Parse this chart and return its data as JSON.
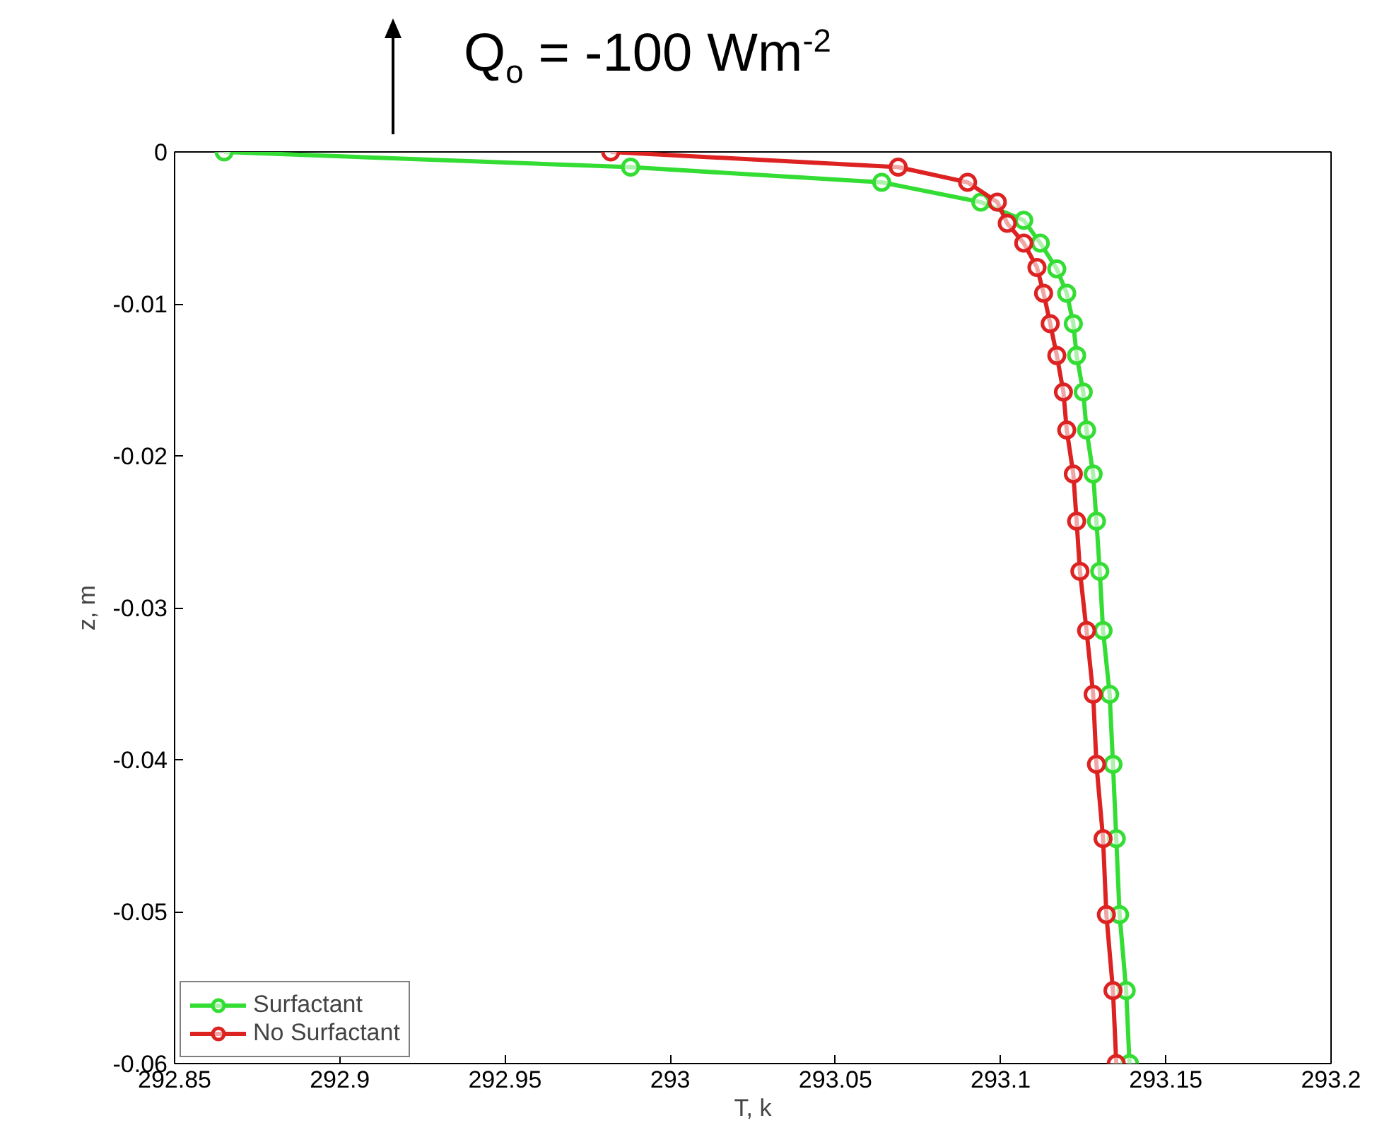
{
  "chart_data": {
    "type": "line",
    "title": "Q$_{o}$ = -100 Wm$^{-2}$",
    "xlabel": "T, k",
    "ylabel": "z, m",
    "xlim": [
      292.85,
      293.2
    ],
    "xticks": [
      292.85,
      292.9,
      292.95,
      293,
      293.05,
      293.1,
      293.15,
      293.2
    ],
    "ylim": [
      -0.06,
      0
    ],
    "yticks": [
      -0.06,
      -0.05,
      -0.04,
      -0.03,
      -0.02,
      -0.01,
      0
    ],
    "marker": "circle",
    "line_style": "solid",
    "grid": false,
    "legend": "bottom left",
    "series": [
      {
        "name": "Surfactant",
        "color": "#33dd33",
        "x": [
          292.865,
          292.988,
          293.064,
          293.094,
          293.107,
          293.112,
          293.117,
          293.12,
          293.122,
          293.123,
          293.125,
          293.126,
          293.128,
          293.129,
          293.13,
          293.131,
          293.133,
          293.134,
          293.135,
          293.136,
          293.138,
          293.139
        ],
        "values": [
          0,
          -0.001,
          -0.002,
          -0.0033,
          -0.0045,
          -0.006,
          -0.0077,
          -0.0093,
          -0.0113,
          -0.0134,
          -0.0158,
          -0.0183,
          -0.0212,
          -0.0243,
          -0.0276,
          -0.0315,
          -0.0357,
          -0.0403,
          -0.0452,
          -0.0502,
          -0.0552,
          -0.06
        ]
      },
      {
        "name": "No Surfactant",
        "color": "#dd2222",
        "x": [
          292.982,
          293.069,
          293.09,
          293.099,
          293.102,
          293.107,
          293.111,
          293.113,
          293.115,
          293.117,
          293.119,
          293.12,
          293.122,
          293.123,
          293.124,
          293.126,
          293.128,
          293.129,
          293.131,
          293.132,
          293.134,
          293.135
        ],
        "values": [
          0,
          -0.001,
          -0.002,
          -0.0033,
          -0.0047,
          -0.006,
          -0.0076,
          -0.0093,
          -0.0113,
          -0.0134,
          -0.0158,
          -0.0183,
          -0.0212,
          -0.0243,
          -0.0276,
          -0.0315,
          -0.0357,
          -0.0403,
          -0.0452,
          -0.0502,
          -0.0552,
          -0.06
        ]
      }
    ]
  }
}
